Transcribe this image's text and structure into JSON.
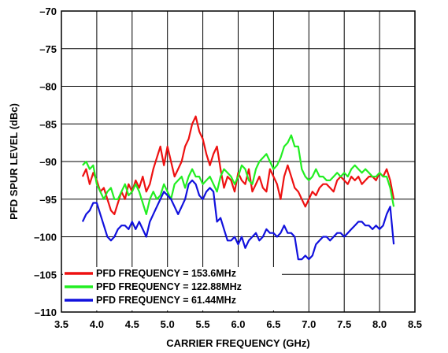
{
  "chart_data": {
    "type": "line",
    "title": "",
    "xlabel": "CARRIER FREQUENCY (GHz)",
    "ylabel": "PFD SPUR LEVEL (dBc)",
    "xlim": [
      3.5,
      8.5
    ],
    "ylim": [
      -110,
      -70
    ],
    "xticks": [
      3.5,
      4.0,
      4.5,
      5.0,
      5.5,
      6.0,
      6.5,
      7.0,
      7.5,
      8.0,
      8.5
    ],
    "xtick_labels": [
      "3.5",
      "4.0",
      "4.5",
      "5.0",
      "5.5",
      "6.0",
      "6.5",
      "7.0",
      "7.5",
      "8.0",
      "8.5"
    ],
    "yticks": [
      -110,
      -105,
      -100,
      -95,
      -90,
      -85,
      -80,
      -75,
      -70
    ],
    "ytick_labels": [
      "–110",
      "–105",
      "–100",
      "–95",
      "–90",
      "–85",
      "–80",
      "–75",
      "–70"
    ],
    "grid": true,
    "legend_position": "bottom-left",
    "series": [
      {
        "name": "PFD FREQUENCY = 153.6MHz",
        "color": "#ee1111",
        "x": [
          3.8,
          3.85,
          3.9,
          3.95,
          4.0,
          4.05,
          4.1,
          4.15,
          4.2,
          4.25,
          4.3,
          4.35,
          4.4,
          4.45,
          4.5,
          4.55,
          4.6,
          4.65,
          4.7,
          4.75,
          4.8,
          4.85,
          4.9,
          4.95,
          5.0,
          5.05,
          5.1,
          5.15,
          5.2,
          5.25,
          5.3,
          5.35,
          5.4,
          5.45,
          5.5,
          5.55,
          5.6,
          5.65,
          5.7,
          5.75,
          5.8,
          5.85,
          5.9,
          5.95,
          6.0,
          6.05,
          6.1,
          6.15,
          6.2,
          6.25,
          6.3,
          6.35,
          6.4,
          6.45,
          6.5,
          6.55,
          6.6,
          6.65,
          6.7,
          6.75,
          6.8,
          6.85,
          6.9,
          6.95,
          7.0,
          7.05,
          7.1,
          7.15,
          7.2,
          7.25,
          7.3,
          7.35,
          7.4,
          7.45,
          7.5,
          7.55,
          7.6,
          7.65,
          7.7,
          7.75,
          7.8,
          7.85,
          7.9,
          7.95,
          8.0,
          8.05,
          8.1,
          8.15,
          8.2
        ],
        "y": [
          -92,
          -91,
          -93,
          -91.5,
          -92.5,
          -94,
          -93.5,
          -95,
          -96.5,
          -97,
          -95.5,
          -94,
          -95,
          -93,
          -94,
          -92.5,
          -93.5,
          -92,
          -94,
          -93,
          -91,
          -89.5,
          -88,
          -90.5,
          -88,
          -90,
          -92,
          -91,
          -90,
          -88,
          -87,
          -85,
          -84,
          -86,
          -87,
          -89,
          -90.5,
          -89,
          -88,
          -91,
          -93.5,
          -92,
          -92.5,
          -94,
          -91.5,
          -92.5,
          -93,
          -91,
          -94,
          -93,
          -92,
          -93.5,
          -94,
          -91,
          -92,
          -93,
          -95,
          -92,
          -90.5,
          -92,
          -93.5,
          -94,
          -95,
          -96,
          -95,
          -94,
          -94.5,
          -93.5,
          -93,
          -93,
          -93.5,
          -94,
          -92.5,
          -92,
          -92.5,
          -93,
          -92,
          -92.5,
          -92,
          -93,
          -92.5,
          -92,
          -92,
          -92.5,
          -91.5,
          -92,
          -91,
          -92.5,
          -95
        ]
      },
      {
        "name": "PFD FREQUENCY = 122.88MHz",
        "color": "#22ee22",
        "x": [
          3.8,
          3.85,
          3.9,
          3.95,
          4.0,
          4.05,
          4.1,
          4.15,
          4.2,
          4.25,
          4.3,
          4.35,
          4.4,
          4.45,
          4.5,
          4.55,
          4.6,
          4.65,
          4.7,
          4.75,
          4.8,
          4.85,
          4.9,
          4.95,
          5.0,
          5.05,
          5.1,
          5.15,
          5.2,
          5.25,
          5.3,
          5.35,
          5.4,
          5.45,
          5.5,
          5.55,
          5.6,
          5.65,
          5.7,
          5.75,
          5.8,
          5.85,
          5.9,
          5.95,
          6.0,
          6.05,
          6.1,
          6.15,
          6.2,
          6.25,
          6.3,
          6.35,
          6.4,
          6.45,
          6.5,
          6.55,
          6.6,
          6.65,
          6.7,
          6.75,
          6.8,
          6.85,
          6.9,
          6.95,
          7.0,
          7.05,
          7.1,
          7.15,
          7.2,
          7.25,
          7.3,
          7.35,
          7.4,
          7.45,
          7.5,
          7.55,
          7.6,
          7.65,
          7.7,
          7.75,
          7.8,
          7.85,
          7.9,
          7.95,
          8.0,
          8.05,
          8.1,
          8.15,
          8.2
        ],
        "y": [
          -90.5,
          -90,
          -91,
          -90.5,
          -93,
          -94,
          -95,
          -94,
          -93.5,
          -95,
          -95,
          -94,
          -93,
          -94.5,
          -94,
          -93,
          -94,
          -95.5,
          -97,
          -95,
          -94,
          -95,
          -94.5,
          -93,
          -94,
          -95,
          -93,
          -92.5,
          -92,
          -93.5,
          -92,
          -91,
          -92,
          -92,
          -93,
          -92.5,
          -92,
          -93,
          -94,
          -92,
          -91,
          -91.5,
          -92,
          -93,
          -92,
          -90.5,
          -91,
          -92.5,
          -93,
          -91,
          -90,
          -89.5,
          -89,
          -90,
          -91,
          -90.5,
          -89.5,
          -88,
          -87.5,
          -86.5,
          -88,
          -88,
          -91,
          -92,
          -92.5,
          -92,
          -91,
          -92,
          -92,
          -92.5,
          -92.5,
          -92,
          -91.5,
          -92,
          -91.5,
          -92,
          -91,
          -90.5,
          -91,
          -91.5,
          -91,
          -91.5,
          -92,
          -92,
          -91.5,
          -92,
          -92,
          -93.5,
          -96
        ]
      },
      {
        "name": "PFD FREQUENCY = 61.44MHz",
        "color": "#1111dd",
        "x": [
          3.8,
          3.85,
          3.9,
          3.95,
          4.0,
          4.05,
          4.1,
          4.15,
          4.2,
          4.25,
          4.3,
          4.35,
          4.4,
          4.45,
          4.5,
          4.55,
          4.6,
          4.65,
          4.7,
          4.75,
          4.8,
          4.85,
          4.9,
          4.95,
          5.0,
          5.05,
          5.1,
          5.15,
          5.2,
          5.25,
          5.3,
          5.35,
          5.4,
          5.45,
          5.5,
          5.55,
          5.6,
          5.65,
          5.7,
          5.75,
          5.8,
          5.85,
          5.9,
          5.95,
          6.0,
          6.05,
          6.1,
          6.15,
          6.2,
          6.25,
          6.3,
          6.35,
          6.4,
          6.45,
          6.5,
          6.55,
          6.6,
          6.65,
          6.7,
          6.75,
          6.8,
          6.85,
          6.9,
          6.95,
          7.0,
          7.05,
          7.1,
          7.15,
          7.2,
          7.25,
          7.3,
          7.35,
          7.4,
          7.45,
          7.5,
          7.55,
          7.6,
          7.65,
          7.7,
          7.75,
          7.8,
          7.85,
          7.9,
          7.95,
          8.0,
          8.05,
          8.1,
          8.15,
          8.2
        ],
        "y": [
          -98,
          -97,
          -96.5,
          -95.5,
          -95.5,
          -97,
          -98.5,
          -100,
          -100.5,
          -100,
          -99,
          -98.5,
          -98.5,
          -99,
          -98,
          -99,
          -98,
          -99,
          -100,
          -98,
          -97,
          -96,
          -95,
          -94,
          -94.5,
          -95,
          -96,
          -97,
          -96,
          -95,
          -93,
          -92.5,
          -93,
          -94.5,
          -95,
          -94,
          -93.5,
          -94,
          -98,
          -97.5,
          -99,
          -100.5,
          -100.5,
          -100,
          -101,
          -100,
          -101.5,
          -100.5,
          -100,
          -99.5,
          -100.5,
          -100,
          -99,
          -99.5,
          -99.5,
          -100,
          -99.5,
          -98.5,
          -99.5,
          -99.5,
          -100,
          -103,
          -103,
          -102.5,
          -103,
          -102.5,
          -101,
          -100.5,
          -100,
          -100,
          -100.5,
          -100,
          -99.5,
          -99.5,
          -100,
          -99.5,
          -99,
          -98.5,
          -98,
          -98,
          -98.5,
          -98.5,
          -99,
          -98.5,
          -99,
          -98.5,
          -97,
          -96,
          -101
        ]
      }
    ]
  }
}
